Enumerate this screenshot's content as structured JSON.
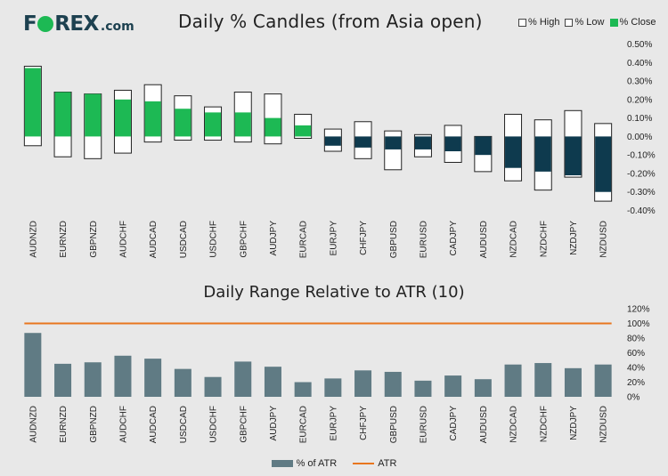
{
  "logo": {
    "brand_left": "F",
    "brand_right": "REX",
    "suffix": ".com",
    "brand_color": "#1d4150",
    "accent": "#1db954"
  },
  "chart_data": [
    {
      "type": "candlestick",
      "title": "Daily % Candles (from Asia open)",
      "legend": [
        "% High",
        "% Low",
        "% Close"
      ],
      "legend_placement": "top-right",
      "categories": [
        "AUDNZD",
        "EURNZD",
        "GBPNZD",
        "AUDCHF",
        "AUDCAD",
        "USDCAD",
        "USDCHF",
        "GBPCHF",
        "AUDJPY",
        "EURCAD",
        "EURJPY",
        "CHFJPY",
        "GBPUSD",
        "EURUSD",
        "CADJPY",
        "AUDUSD",
        "NZDCAD",
        "NZDCHF",
        "NZDJPY",
        "NZDUSD"
      ],
      "high": [
        0.38,
        0.24,
        0.23,
        0.25,
        0.28,
        0.22,
        0.16,
        0.24,
        0.23,
        0.12,
        0.04,
        0.08,
        0.03,
        0.01,
        0.06,
        0.0,
        0.12,
        0.09,
        0.14,
        0.07
      ],
      "low": [
        -0.05,
        -0.11,
        -0.12,
        -0.09,
        -0.03,
        -0.02,
        -0.02,
        -0.03,
        -0.04,
        -0.01,
        -0.08,
        -0.12,
        -0.18,
        -0.11,
        -0.14,
        -0.19,
        -0.24,
        -0.29,
        -0.22,
        -0.35
      ],
      "close": [
        0.37,
        0.24,
        0.23,
        0.2,
        0.19,
        0.15,
        0.13,
        0.13,
        0.1,
        0.06,
        -0.05,
        -0.06,
        -0.07,
        -0.07,
        -0.08,
        -0.1,
        -0.17,
        -0.19,
        -0.21,
        -0.3
      ],
      "y_ticks": [
        "0.50%",
        "0.40%",
        "0.30%",
        "0.20%",
        "0.10%",
        "0.00%",
        "-0.10%",
        "-0.20%",
        "-0.30%",
        "-0.40%"
      ],
      "ylim": [
        -0.4,
        0.5
      ],
      "colors": {
        "up": "#1db954",
        "down": "#0e3a4e",
        "range": "#ffffff"
      }
    },
    {
      "type": "bar",
      "title": "Daily Range Relative to ATR (10)",
      "legend": [
        "% of ATR",
        "ATR"
      ],
      "legend_placement": "bottom",
      "categories": [
        "AUDNZD",
        "EURNZD",
        "GBPNZD",
        "AUDCHF",
        "AUDCAD",
        "USDCAD",
        "USDCHF",
        "GBPCHF",
        "AUDJPY",
        "EURCAD",
        "EURJPY",
        "CHFJPY",
        "GBPUSD",
        "EURUSD",
        "CADJPY",
        "AUDUSD",
        "NZDCAD",
        "NZDCHF",
        "NZDJPY",
        "NZDUSD"
      ],
      "values": [
        87,
        45,
        47,
        56,
        52,
        38,
        27,
        48,
        41,
        20,
        25,
        36,
        34,
        22,
        29,
        24,
        44,
        46,
        39,
        44
      ],
      "atr_line": 100,
      "y_ticks": [
        "120%",
        "100%",
        "80%",
        "60%",
        "40%",
        "20%",
        "0%"
      ],
      "ylim": [
        0,
        120
      ],
      "colors": {
        "bar": "#607b84",
        "atr": "#e8761e"
      }
    }
  ]
}
